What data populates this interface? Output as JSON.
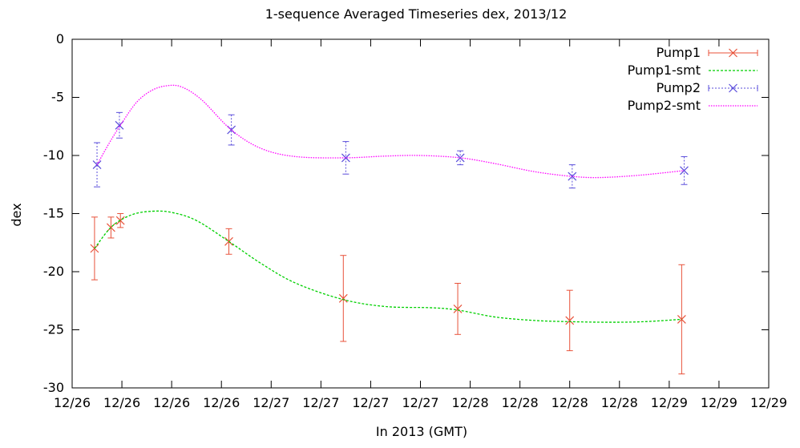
{
  "chart_data": {
    "type": "line",
    "title": "1-sequence Averaged Timeseries dex, 2013/12",
    "xlabel": "In 2013 (GMT)",
    "ylabel": "dex",
    "xlim": [
      0,
      14
    ],
    "ylim": [
      -30,
      0
    ],
    "x_ticks": [
      {
        "x": 0,
        "label": "12/26"
      },
      {
        "x": 1,
        "label": "12/26"
      },
      {
        "x": 2,
        "label": "12/26"
      },
      {
        "x": 3,
        "label": "12/26"
      },
      {
        "x": 4,
        "label": "12/27"
      },
      {
        "x": 5,
        "label": "12/27"
      },
      {
        "x": 6,
        "label": "12/27"
      },
      {
        "x": 7,
        "label": "12/27"
      },
      {
        "x": 8,
        "label": "12/28"
      },
      {
        "x": 9,
        "label": "12/28"
      },
      {
        "x": 10,
        "label": "12/28"
      },
      {
        "x": 11,
        "label": "12/28"
      },
      {
        "x": 12,
        "label": "12/29"
      },
      {
        "x": 13,
        "label": "12/29"
      },
      {
        "x": 14,
        "label": "12/29"
      }
    ],
    "y_ticks": [
      0,
      -5,
      -10,
      -15,
      -20,
      -25,
      -30
    ],
    "grid": false,
    "legend_position": "top-right",
    "series": [
      {
        "name": "Pump1",
        "style": "points-errorbars",
        "color": "#e8523a",
        "points": [
          {
            "x": 0.45,
            "y": -18.0,
            "err": 2.7
          },
          {
            "x": 0.78,
            "y": -16.2,
            "err": 0.9
          },
          {
            "x": 0.97,
            "y": -15.6,
            "err": 0.6
          },
          {
            "x": 3.15,
            "y": -17.4,
            "err": 1.1
          },
          {
            "x": 5.45,
            "y": -22.3,
            "err": 3.7
          },
          {
            "x": 7.75,
            "y": -23.2,
            "err": 2.2
          },
          {
            "x": 10.0,
            "y": -24.2,
            "err": 2.6
          },
          {
            "x": 12.25,
            "y": -24.1,
            "err": 4.7
          }
        ]
      },
      {
        "name": "Pump1-smt",
        "style": "dashed-line",
        "color": "#00d000",
        "points": [
          {
            "x": 0.45,
            "y": -18.0
          },
          {
            "x": 0.8,
            "y": -16.1
          },
          {
            "x": 1.2,
            "y": -15.1
          },
          {
            "x": 1.6,
            "y": -14.8
          },
          {
            "x": 2.0,
            "y": -14.9
          },
          {
            "x": 2.5,
            "y": -15.6
          },
          {
            "x": 3.15,
            "y": -17.4
          },
          {
            "x": 3.8,
            "y": -19.3
          },
          {
            "x": 4.5,
            "y": -21.0
          },
          {
            "x": 5.45,
            "y": -22.4
          },
          {
            "x": 6.3,
            "y": -23.0
          },
          {
            "x": 7.2,
            "y": -23.1
          },
          {
            "x": 7.75,
            "y": -23.3
          },
          {
            "x": 8.5,
            "y": -23.9
          },
          {
            "x": 9.3,
            "y": -24.2
          },
          {
            "x": 10.0,
            "y": -24.3
          },
          {
            "x": 10.8,
            "y": -24.35
          },
          {
            "x": 11.5,
            "y": -24.3
          },
          {
            "x": 12.25,
            "y": -24.1
          }
        ]
      },
      {
        "name": "Pump2",
        "style": "points-errorbars",
        "color": "#5a4ddb",
        "points": [
          {
            "x": 0.5,
            "y": -10.8,
            "err": 1.9
          },
          {
            "x": 0.95,
            "y": -7.4,
            "err": 1.1
          },
          {
            "x": 3.2,
            "y": -7.8,
            "err": 1.3
          },
          {
            "x": 5.5,
            "y": -10.2,
            "err": 1.4
          },
          {
            "x": 7.8,
            "y": -10.2,
            "err": 0.6
          },
          {
            "x": 10.05,
            "y": -11.8,
            "err": 1.0
          },
          {
            "x": 12.3,
            "y": -11.3,
            "err": 1.2
          }
        ]
      },
      {
        "name": "Pump2-smt",
        "style": "dotted-line",
        "color": "#ff00ff",
        "points": [
          {
            "x": 0.5,
            "y": -10.8
          },
          {
            "x": 0.75,
            "y": -8.9
          },
          {
            "x": 1.0,
            "y": -7.2
          },
          {
            "x": 1.3,
            "y": -5.4
          },
          {
            "x": 1.6,
            "y": -4.4
          },
          {
            "x": 1.9,
            "y": -4.0
          },
          {
            "x": 2.2,
            "y": -4.1
          },
          {
            "x": 2.6,
            "y": -5.2
          },
          {
            "x": 3.2,
            "y": -7.8
          },
          {
            "x": 3.8,
            "y": -9.4
          },
          {
            "x": 4.5,
            "y": -10.1
          },
          {
            "x": 5.5,
            "y": -10.2
          },
          {
            "x": 6.3,
            "y": -10.05
          },
          {
            "x": 7.0,
            "y": -10.0
          },
          {
            "x": 7.8,
            "y": -10.2
          },
          {
            "x": 8.5,
            "y": -10.7
          },
          {
            "x": 9.3,
            "y": -11.4
          },
          {
            "x": 10.05,
            "y": -11.8
          },
          {
            "x": 10.6,
            "y": -11.9
          },
          {
            "x": 11.4,
            "y": -11.7
          },
          {
            "x": 12.3,
            "y": -11.3
          }
        ]
      }
    ]
  }
}
